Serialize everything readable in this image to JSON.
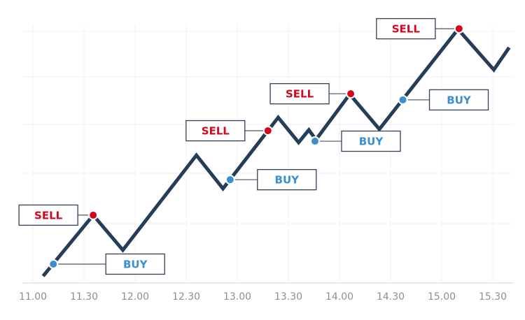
{
  "chart_data": {
    "type": "line",
    "x": [
      11.1,
      11.59,
      11.88,
      12.6,
      12.86,
      13.4,
      13.6,
      13.7,
      13.77,
      14.1,
      14.39,
      15.16,
      15.51,
      15.66
    ],
    "values": [
      2.7,
      26.6,
      12.9,
      50.1,
      37,
      64.9,
      55.1,
      60,
      56.2,
      74,
      60.3,
      99.5,
      83.6,
      92.3
    ],
    "color": "#243d58",
    "xlim": [
      10.9,
      15.7
    ],
    "ylim": [
      0,
      100
    ],
    "xticks": [
      {
        "value": 11,
        "label": "11.00"
      },
      {
        "value": 11.5,
        "label": "11.30"
      },
      {
        "value": 12,
        "label": "12.00"
      },
      {
        "value": 12.5,
        "label": "12.30"
      },
      {
        "value": 13,
        "label": "13.00"
      },
      {
        "value": 13.5,
        "label": "13.30"
      },
      {
        "value": 14,
        "label": "14.00"
      },
      {
        "value": 14.5,
        "label": "14.30"
      },
      {
        "value": 15,
        "label": "15.00"
      },
      {
        "value": 15.5,
        "label": "15.30"
      }
    ],
    "grid": true,
    "annotations": [
      {
        "text": "BUY",
        "x": 11.2,
        "y": 7.4,
        "color": "#3b8ed0"
      },
      {
        "text": "SELL",
        "x": 11.59,
        "y": 26.6,
        "color": "#d2061d"
      },
      {
        "text": "BUY",
        "x": 12.93,
        "y": 40.5,
        "color": "#3b8ed0"
      },
      {
        "text": "SELL",
        "x": 13.3,
        "y": 59.7,
        "color": "#d2061d"
      },
      {
        "text": "BUY",
        "x": 13.76,
        "y": 55.6,
        "color": "#3b8ed0"
      },
      {
        "text": "SELL",
        "x": 14.11,
        "y": 74.2,
        "color": "#d2061d"
      },
      {
        "text": "BUY",
        "x": 14.62,
        "y": 71.8,
        "color": "#3b8ed0"
      },
      {
        "text": "SELL",
        "x": 15.17,
        "y": 99.7,
        "color": "#d2061d"
      }
    ]
  }
}
